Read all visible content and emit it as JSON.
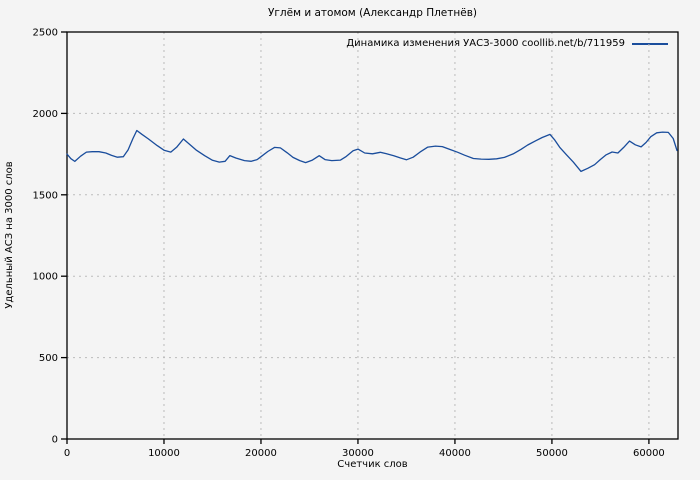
{
  "page": {
    "background": "#f4f4f4"
  },
  "legend": {
    "label": "Динамика изменения УАСЗ-3000 coollib.net/b/711959"
  },
  "chart_data": {
    "type": "line",
    "title": "Углём и атомом (Александр Плетнёв)",
    "xlabel": "Счетчик слов",
    "ylabel": "Удельный АСЗ на 3000 слов",
    "xlim": [
      0,
      63000
    ],
    "ylim": [
      0,
      2500
    ],
    "xticks": [
      0,
      10000,
      20000,
      30000,
      40000,
      50000,
      60000
    ],
    "yticks": [
      0,
      500,
      1000,
      1500,
      2000,
      2500
    ],
    "grid": "dashed",
    "legend_position": "top-right",
    "line_color": "#1a4d9c",
    "series": [
      {
        "name": "Динамика изменения УАСЗ-3000 coollib.net/b/711959",
        "color": "#1a4d9c",
        "points": [
          [
            0,
            1750
          ],
          [
            400,
            1722
          ],
          [
            800,
            1705
          ],
          [
            1400,
            1737
          ],
          [
            2000,
            1762
          ],
          [
            2600,
            1765
          ],
          [
            3300,
            1765
          ],
          [
            4000,
            1757
          ],
          [
            4600,
            1742
          ],
          [
            5200,
            1731
          ],
          [
            5800,
            1734
          ],
          [
            6300,
            1776
          ],
          [
            6800,
            1845
          ],
          [
            7200,
            1895
          ],
          [
            7700,
            1872
          ],
          [
            8400,
            1843
          ],
          [
            9300,
            1802
          ],
          [
            10000,
            1774
          ],
          [
            10700,
            1762
          ],
          [
            11300,
            1792
          ],
          [
            12000,
            1843
          ],
          [
            12600,
            1812
          ],
          [
            13300,
            1776
          ],
          [
            14200,
            1740
          ],
          [
            15000,
            1712
          ],
          [
            15700,
            1701
          ],
          [
            16300,
            1706
          ],
          [
            16800,
            1741
          ],
          [
            17400,
            1726
          ],
          [
            18300,
            1710
          ],
          [
            19000,
            1706
          ],
          [
            19600,
            1716
          ],
          [
            20000,
            1734
          ],
          [
            20700,
            1766
          ],
          [
            21400,
            1791
          ],
          [
            22000,
            1788
          ],
          [
            22700,
            1758
          ],
          [
            23300,
            1730
          ],
          [
            24000,
            1710
          ],
          [
            24600,
            1698
          ],
          [
            25300,
            1713
          ],
          [
            26000,
            1740
          ],
          [
            26600,
            1716
          ],
          [
            27300,
            1710
          ],
          [
            28200,
            1713
          ],
          [
            28800,
            1736
          ],
          [
            29500,
            1771
          ],
          [
            30000,
            1781
          ],
          [
            30700,
            1757
          ],
          [
            31500,
            1752
          ],
          [
            32300,
            1761
          ],
          [
            32900,
            1753
          ],
          [
            33700,
            1740
          ],
          [
            34400,
            1726
          ],
          [
            35000,
            1715
          ],
          [
            35700,
            1731
          ],
          [
            36400,
            1762
          ],
          [
            37200,
            1793
          ],
          [
            38000,
            1799
          ],
          [
            38700,
            1796
          ],
          [
            39500,
            1778
          ],
          [
            40300,
            1761
          ],
          [
            41000,
            1743
          ],
          [
            41900,
            1723
          ],
          [
            42700,
            1719
          ],
          [
            43500,
            1718
          ],
          [
            44300,
            1721
          ],
          [
            45100,
            1730
          ],
          [
            46000,
            1751
          ],
          [
            46800,
            1779
          ],
          [
            47500,
            1806
          ],
          [
            48300,
            1831
          ],
          [
            49000,
            1852
          ],
          [
            49800,
            1871
          ],
          [
            50300,
            1836
          ],
          [
            50800,
            1792
          ],
          [
            51500,
            1746
          ],
          [
            52200,
            1701
          ],
          [
            53000,
            1644
          ],
          [
            53700,
            1663
          ],
          [
            54400,
            1685
          ],
          [
            55000,
            1717
          ],
          [
            55600,
            1746
          ],
          [
            56200,
            1763
          ],
          [
            56800,
            1757
          ],
          [
            57400,
            1791
          ],
          [
            58000,
            1830
          ],
          [
            58600,
            1807
          ],
          [
            59200,
            1794
          ],
          [
            59700,
            1821
          ],
          [
            60200,
            1857
          ],
          [
            60800,
            1881
          ],
          [
            61400,
            1885
          ],
          [
            62000,
            1883
          ],
          [
            62500,
            1846
          ],
          [
            62900,
            1772
          ]
        ]
      }
    ]
  }
}
